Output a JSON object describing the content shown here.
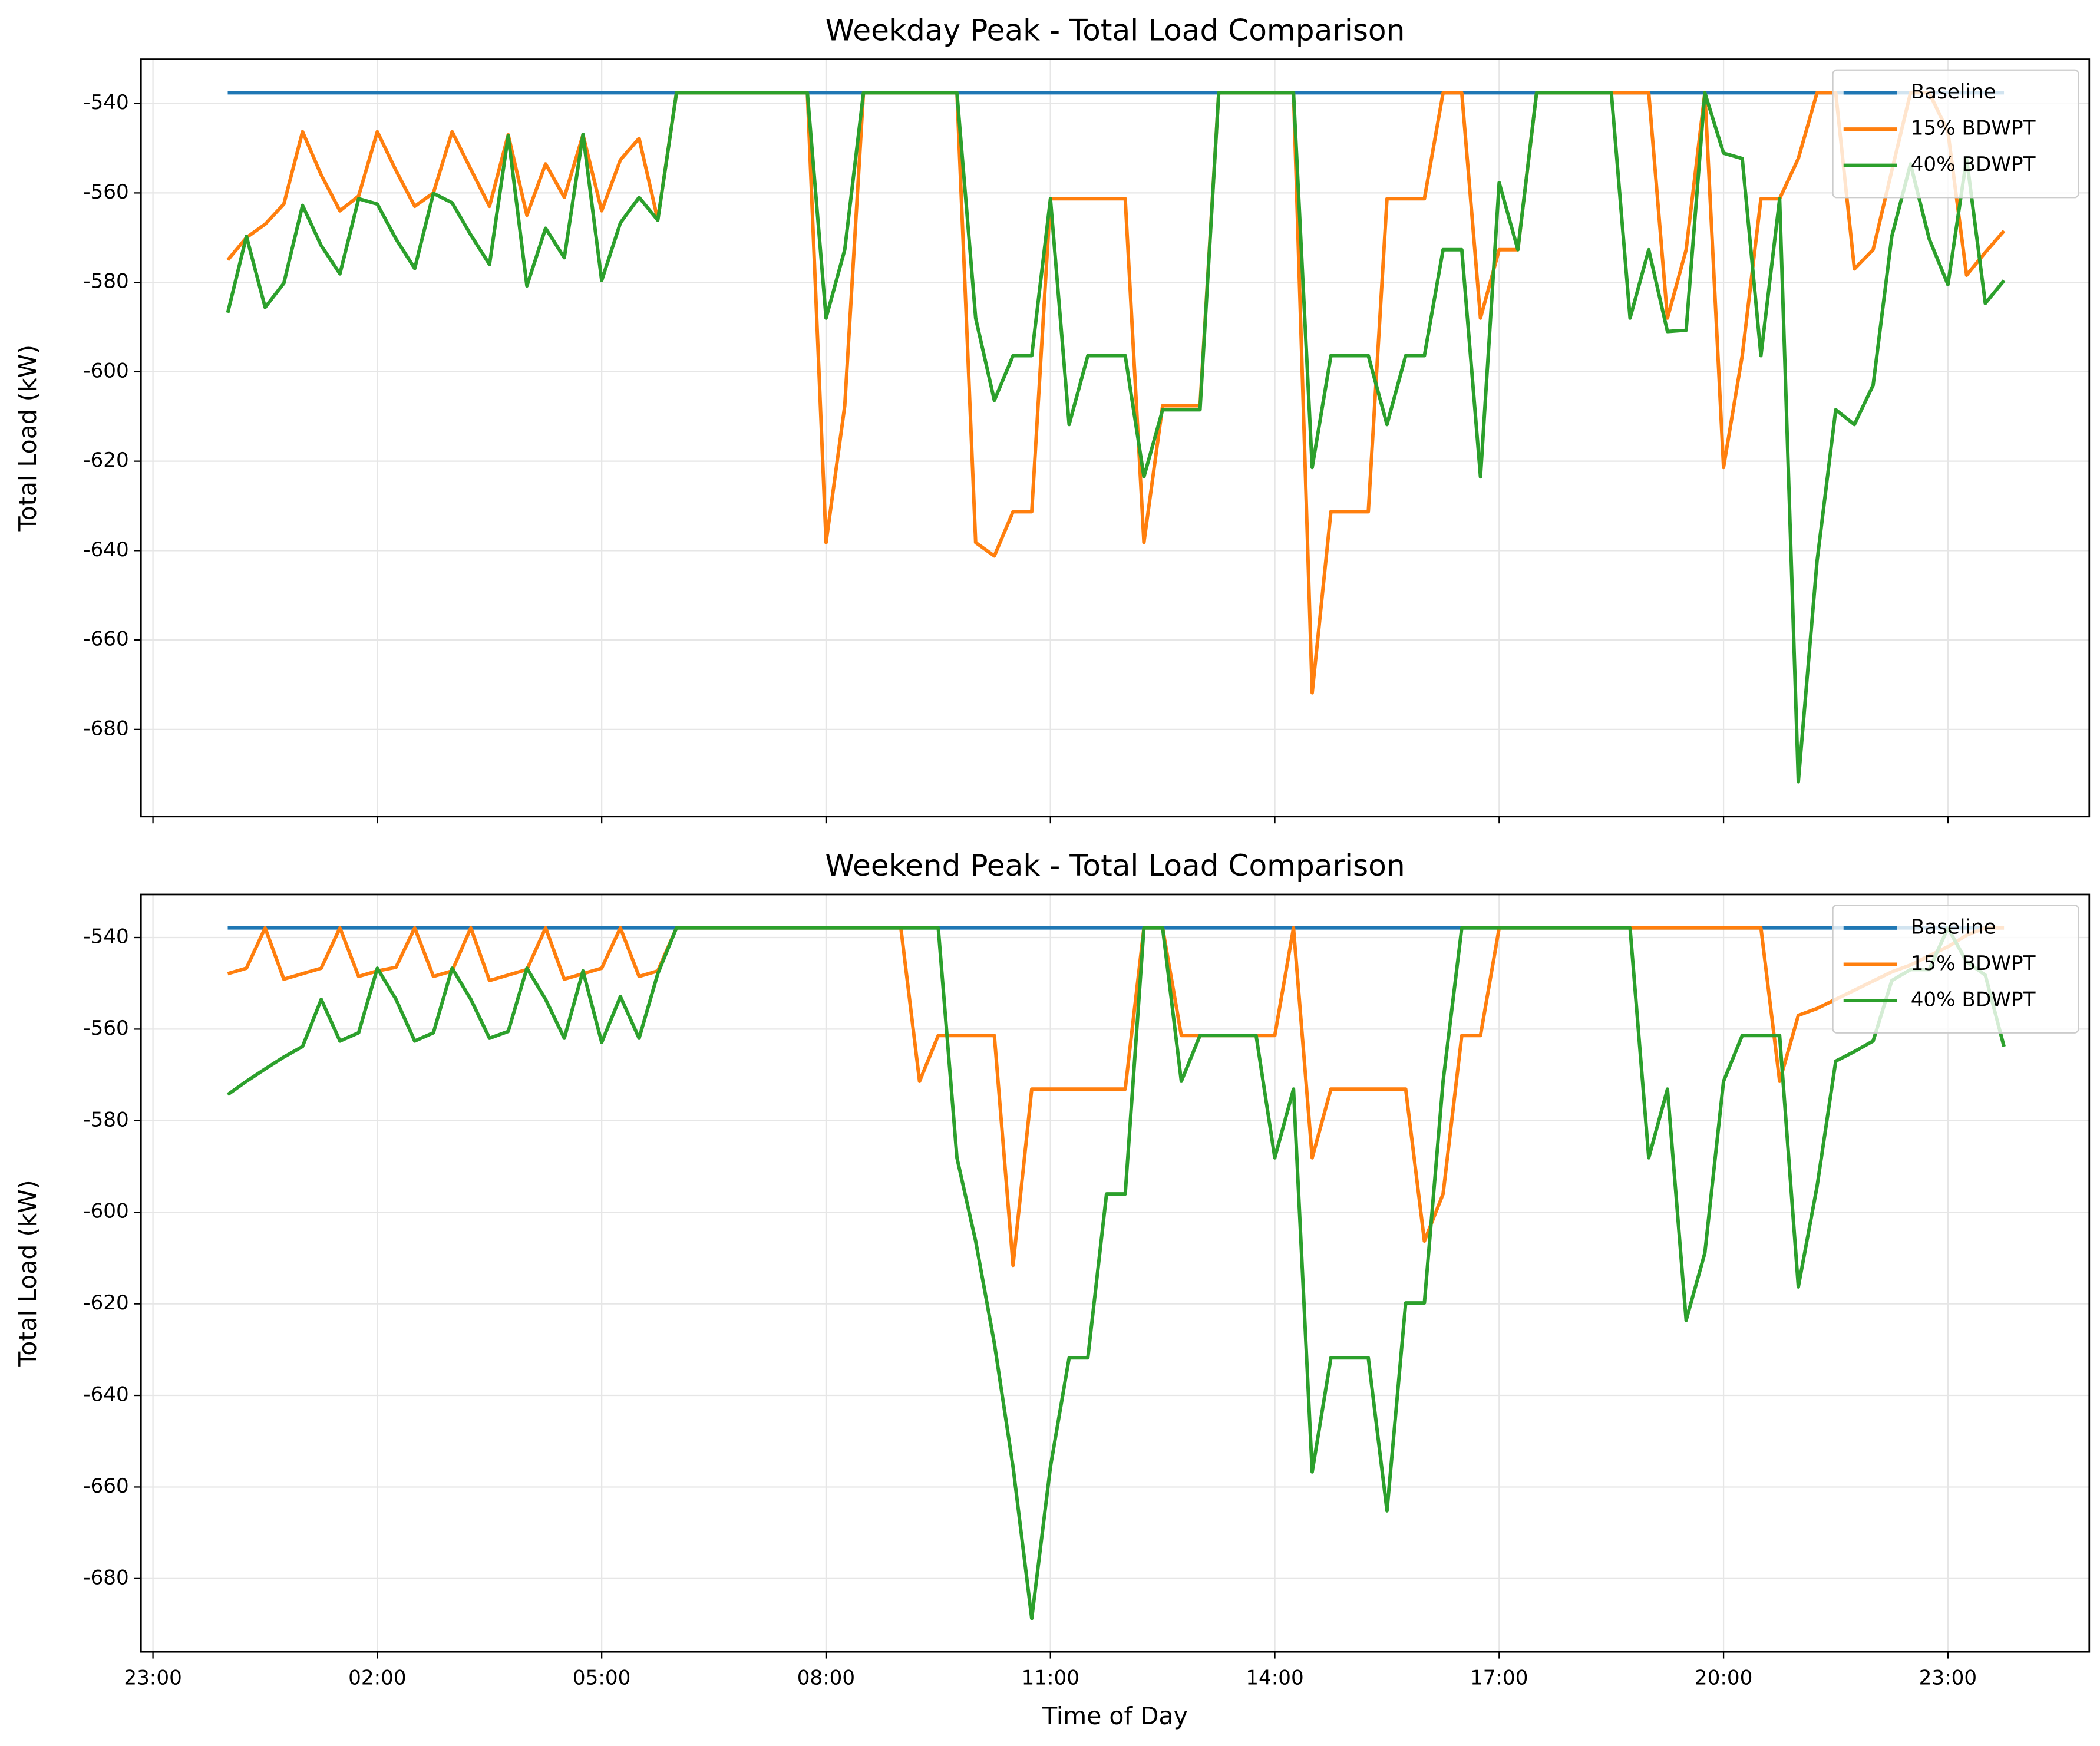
{
  "chart_data": [
    {
      "type": "line",
      "title": "Weekday Peak - Total Load Comparison",
      "ylabel": "Total Load (kW)",
      "grid": true,
      "legend": "upper right",
      "x": [
        0,
        0.25,
        0.5,
        0.75,
        1,
        1.25,
        1.5,
        1.75,
        2,
        2.25,
        2.5,
        2.75,
        3,
        3.25,
        3.5,
        3.75,
        4,
        4.25,
        4.5,
        4.75,
        5,
        5.25,
        5.5,
        5.75,
        6,
        6.25,
        6.5,
        6.75,
        7,
        7.25,
        7.5,
        7.75,
        8,
        8.25,
        8.5,
        8.75,
        9,
        9.25,
        9.5,
        9.75,
        10,
        10.25,
        10.5,
        10.75,
        11,
        11.25,
        11.5,
        11.75,
        12,
        12.25,
        12.5,
        12.75,
        13,
        13.25,
        13.5,
        13.75,
        14,
        14.25,
        14.5,
        14.75,
        15,
        15.25,
        15.5,
        15.75,
        16,
        16.25,
        16.5,
        16.75,
        17,
        17.25,
        17.5,
        17.75,
        18,
        18.25,
        18.5,
        18.75,
        19,
        19.25,
        19.5,
        19.75,
        20,
        20.25,
        20.5,
        20.75,
        21,
        21.25,
        21.5,
        21.75,
        22,
        22.25,
        22.5,
        22.75,
        23,
        23.25,
        23.5,
        23.75
      ],
      "xlim": [
        -1.16,
        24.89
      ],
      "xticks": [
        -1,
        2,
        5,
        8,
        11,
        14,
        17,
        20,
        23
      ],
      "ylim": [
        -699.5,
        -530.1
      ],
      "yticks": [
        -680,
        -660,
        -640,
        -620,
        -600,
        -580,
        -560,
        -540
      ],
      "series": [
        {
          "name": "Baseline",
          "color": "#1f77b4",
          "values": [
            -537.6,
            -537.6,
            -537.6,
            -537.6,
            -537.6,
            -537.6,
            -537.6,
            -537.6,
            -537.6,
            -537.6,
            -537.6,
            -537.6,
            -537.6,
            -537.6,
            -537.6,
            -537.6,
            -537.6,
            -537.6,
            -537.6,
            -537.6,
            -537.6,
            -537.6,
            -537.6,
            -537.6,
            -537.6,
            -537.6,
            -537.6,
            -537.6,
            -537.6,
            -537.6,
            -537.6,
            -537.6,
            -537.6,
            -537.6,
            -537.6,
            -537.6,
            -537.6,
            -537.6,
            -537.6,
            -537.6,
            -537.6,
            -537.6,
            -537.6,
            -537.6,
            -537.6,
            -537.6,
            -537.6,
            -537.6,
            -537.6,
            -537.6,
            -537.6,
            -537.6,
            -537.6,
            -537.6,
            -537.6,
            -537.6,
            -537.6,
            -537.6,
            -537.6,
            -537.6,
            -537.6,
            -537.6,
            -537.6,
            -537.6,
            -537.6,
            -537.6,
            -537.6,
            -537.6,
            -537.6,
            -537.6,
            -537.6,
            -537.6,
            -537.6,
            -537.6,
            -537.6,
            -537.6,
            -537.6,
            -537.6,
            -537.6,
            -537.6,
            -537.6,
            -537.6,
            -537.6,
            -537.6,
            -537.6,
            -537.6,
            -537.6,
            -537.6,
            -537.6,
            -537.6,
            -537.6,
            -537.6,
            -537.6,
            -537.6,
            -537.6,
            -537.6
          ]
        },
        {
          "name": "15% BDWPT",
          "color": "#ff7f0e",
          "values": [
            -575,
            -570,
            -567,
            -562.5,
            -546.3,
            -556,
            -564,
            -560.7,
            -546.3,
            -555,
            -563,
            -560,
            -546.3,
            -554.7,
            -563,
            -547,
            -565,
            -553.5,
            -561,
            -547,
            -564,
            -552.6,
            -547.8,
            -566,
            -537.6,
            -537.6,
            -537.6,
            -537.6,
            -537.6,
            -537.6,
            -537.6,
            -537.6,
            -638.2,
            -607.6,
            -537.6,
            -537.6,
            -537.6,
            -537.6,
            -537.6,
            -537.6,
            -638.2,
            -641.2,
            -631.3,
            -631.3,
            -561.3,
            -561.3,
            -561.3,
            -561.3,
            -561.3,
            -638.2,
            -607.6,
            -607.6,
            -607.6,
            -537.6,
            -537.6,
            -537.6,
            -537.6,
            -537.6,
            -671.8,
            -631.3,
            -631.3,
            -631.3,
            -561.3,
            -561.3,
            -561.3,
            -537.6,
            -537.6,
            -588,
            -572.7,
            -572.7,
            -537.6,
            -537.6,
            -537.6,
            -537.6,
            -537.6,
            -537.6,
            -537.6,
            -588,
            -572.7,
            -537.6,
            -621.4,
            -596.4,
            -561.3,
            -561.3,
            -552.3,
            -537.6,
            -537.6,
            -577,
            -572.7,
            -555,
            -537.6,
            -537.6,
            -546.3,
            -578.4,
            -573.3,
            -568.5
          ]
        },
        {
          "name": "40% BDWPT",
          "color": "#2ca02c",
          "values": [
            -586.8,
            -569.7,
            -585.6,
            -580.2,
            -562.8,
            -571.8,
            -578.1,
            -561.3,
            -562.5,
            -570.3,
            -576.9,
            -560.1,
            -562.2,
            -569.4,
            -576,
            -547.2,
            -580.8,
            -567.9,
            -574.5,
            -546.9,
            -579.6,
            -566.7,
            -561,
            -566.1,
            -537.6,
            -537.6,
            -537.6,
            -537.6,
            -537.6,
            -537.6,
            -537.6,
            -537.6,
            -588,
            -572.7,
            -537.6,
            -537.6,
            -537.6,
            -537.6,
            -537.6,
            -537.6,
            -588,
            -606.4,
            -596.4,
            -596.4,
            -561.3,
            -611.8,
            -596.4,
            -596.4,
            -596.4,
            -623.5,
            -608.5,
            -608.5,
            -608.5,
            -537.6,
            -537.6,
            -537.6,
            -537.6,
            -537.6,
            -621.4,
            -596.4,
            -596.4,
            -596.4,
            -611.8,
            -596.4,
            -596.4,
            -572.7,
            -572.7,
            -623.5,
            -557.7,
            -572.7,
            -537.6,
            -537.6,
            -537.6,
            -537.6,
            -537.6,
            -588,
            -572.7,
            -591,
            -590.7,
            -537.6,
            -551.1,
            -552.3,
            -596.4,
            -561.3,
            -691.7,
            -642.4,
            -608.5,
            -611.8,
            -603,
            -569.7,
            -553.5,
            -570.3,
            -580.5,
            -552.3,
            -584.7,
            -579.6
          ]
        }
      ]
    },
    {
      "type": "line",
      "title": "Weekend Peak - Total Load Comparison",
      "xlabel": "Time of Day",
      "ylabel": "Total Load (kW)",
      "grid": true,
      "legend": "upper right",
      "x": [
        0,
        0.25,
        0.5,
        0.75,
        1,
        1.25,
        1.5,
        1.75,
        2,
        2.25,
        2.5,
        2.75,
        3,
        3.25,
        3.5,
        3.75,
        4,
        4.25,
        4.5,
        4.75,
        5,
        5.25,
        5.5,
        5.75,
        6,
        6.25,
        6.5,
        6.75,
        7,
        7.25,
        7.5,
        7.75,
        8,
        8.25,
        8.5,
        8.75,
        9,
        9.25,
        9.5,
        9.75,
        10,
        10.25,
        10.5,
        10.75,
        11,
        11.25,
        11.5,
        11.75,
        12,
        12.25,
        12.5,
        12.75,
        13,
        13.25,
        13.5,
        13.75,
        14,
        14.25,
        14.5,
        14.75,
        15,
        15.25,
        15.5,
        15.75,
        16,
        16.25,
        16.5,
        16.75,
        17,
        17.25,
        17.5,
        17.75,
        18,
        18.25,
        18.5,
        18.75,
        19,
        19.25,
        19.5,
        19.75,
        20,
        20.25,
        20.5,
        20.75,
        21,
        21.25,
        21.5,
        21.75,
        22,
        22.25,
        22.5,
        22.75,
        23,
        23.25,
        23.5,
        23.75
      ],
      "xlim": [
        -1.16,
        24.89
      ],
      "xticks": [
        {
          "value": -1,
          "label": "23:00"
        },
        {
          "value": 2,
          "label": "02:00"
        },
        {
          "value": 5,
          "label": "05:00"
        },
        {
          "value": 8,
          "label": "08:00"
        },
        {
          "value": 11,
          "label": "11:00"
        },
        {
          "value": 14,
          "label": "14:00"
        },
        {
          "value": 17,
          "label": "17:00"
        },
        {
          "value": 20,
          "label": "20:00"
        },
        {
          "value": 23,
          "label": "23:00"
        }
      ],
      "ylim": [
        -696,
        -530.6
      ],
      "yticks": [
        -680,
        -660,
        -640,
        -620,
        -600,
        -580,
        -560,
        -540
      ],
      "series": [
        {
          "name": "Baseline",
          "color": "#1f77b4",
          "values": [
            -537.9,
            -537.9,
            -537.9,
            -537.9,
            -537.9,
            -537.9,
            -537.9,
            -537.9,
            -537.9,
            -537.9,
            -537.9,
            -537.9,
            -537.9,
            -537.9,
            -537.9,
            -537.9,
            -537.9,
            -537.9,
            -537.9,
            -537.9,
            -537.9,
            -537.9,
            -537.9,
            -537.9,
            -537.9,
            -537.9,
            -537.9,
            -537.9,
            -537.9,
            -537.9,
            -537.9,
            -537.9,
            -537.9,
            -537.9,
            -537.9,
            -537.9,
            -537.9,
            -537.9,
            -537.9,
            -537.9,
            -537.9,
            -537.9,
            -537.9,
            -537.9,
            -537.9,
            -537.9,
            -537.9,
            -537.9,
            -537.9,
            -537.9,
            -537.9,
            -537.9,
            -537.9,
            -537.9,
            -537.9,
            -537.9,
            -537.9,
            -537.9,
            -537.9,
            -537.9,
            -537.9,
            -537.9,
            -537.9,
            -537.9,
            -537.9,
            -537.9,
            -537.9,
            -537.9,
            -537.9,
            -537.9,
            -537.9,
            -537.9,
            -537.9,
            -537.9,
            -537.9,
            -537.9,
            -537.9,
            -537.9,
            -537.9,
            -537.9,
            -537.9,
            -537.9,
            -537.9,
            -537.9,
            -537.9,
            -537.9,
            -537.9,
            -537.9,
            -537.9,
            -537.9,
            -537.9,
            -537.9,
            -537.9,
            -537.9,
            -537.9,
            -537.9
          ]
        },
        {
          "name": "15% BDWPT",
          "color": "#ff7f0e",
          "values": [
            -547.9,
            -546.7,
            -537.9,
            -549.1,
            -547.9,
            -546.7,
            -537.9,
            -548.5,
            -547.3,
            -546.5,
            -537.9,
            -548.5,
            -547.3,
            -537.9,
            -549.4,
            -548.2,
            -547,
            -537.9,
            -549.1,
            -547.9,
            -546.7,
            -537.9,
            -548.5,
            -547.3,
            -537.9,
            -537.9,
            -537.9,
            -537.9,
            -537.9,
            -537.9,
            -537.9,
            -537.9,
            -537.9,
            -537.9,
            -537.9,
            -537.9,
            -537.9,
            -571.4,
            -561.4,
            -561.4,
            -561.4,
            -561.4,
            -611.6,
            -573.1,
            -573.1,
            -573.1,
            -573.1,
            -573.1,
            -573.1,
            -537.9,
            -537.9,
            -561.4,
            -561.4,
            -561.4,
            -561.4,
            -561.4,
            -561.4,
            -537.9,
            -588.1,
            -573.1,
            -573.1,
            -573.1,
            -573.1,
            -573.1,
            -606.3,
            -596,
            -561.4,
            -561.4,
            -537.9,
            -537.9,
            -537.9,
            -537.9,
            -537.9,
            -537.9,
            -537.9,
            -537.9,
            -537.9,
            -537.9,
            -537.9,
            -537.9,
            -537.9,
            -537.9,
            -537.9,
            -571.4,
            -557,
            -555.5,
            -553.5,
            -551.5,
            -549.5,
            -547.5,
            -546,
            -544,
            -542,
            -539.5,
            -537.9,
            -537.9
          ]
        },
        {
          "name": "40% BDWPT",
          "color": "#2ca02c",
          "values": [
            -574.3,
            -571.4,
            -568.7,
            -566.1,
            -563.8,
            -553.5,
            -562.6,
            -560.8,
            -546.7,
            -553.5,
            -562.6,
            -560.8,
            -546.7,
            -553.5,
            -562,
            -560.5,
            -546.7,
            -553.5,
            -562,
            -547.3,
            -562.9,
            -552.9,
            -562,
            -547.9,
            -537.9,
            -537.9,
            -537.9,
            -537.9,
            -537.9,
            -537.9,
            -537.9,
            -537.9,
            -537.9,
            -537.9,
            -537.9,
            -537.9,
            -537.9,
            -537.9,
            -537.9,
            -588.1,
            -606.3,
            -628.6,
            -655.6,
            -688.7,
            -655.6,
            -631.8,
            -631.8,
            -596,
            -596,
            -537.9,
            -537.9,
            -571.4,
            -561.4,
            -561.4,
            -561.4,
            -561.4,
            -588.1,
            -573.1,
            -656.7,
            -631.8,
            -631.8,
            -631.8,
            -665.2,
            -619.8,
            -619.8,
            -571.4,
            -537.9,
            -537.9,
            -537.9,
            -537.9,
            -537.9,
            -537.9,
            -537.9,
            -537.9,
            -537.9,
            -537.9,
            -588.1,
            -573.1,
            -623.6,
            -608.9,
            -571.4,
            -561.4,
            -561.4,
            -561.4,
            -616.3,
            -594.4,
            -567,
            -564.9,
            -562.6,
            -549.4,
            -547,
            -547,
            -537.9,
            -545.3,
            -548.2,
            -563.8
          ]
        }
      ]
    }
  ]
}
